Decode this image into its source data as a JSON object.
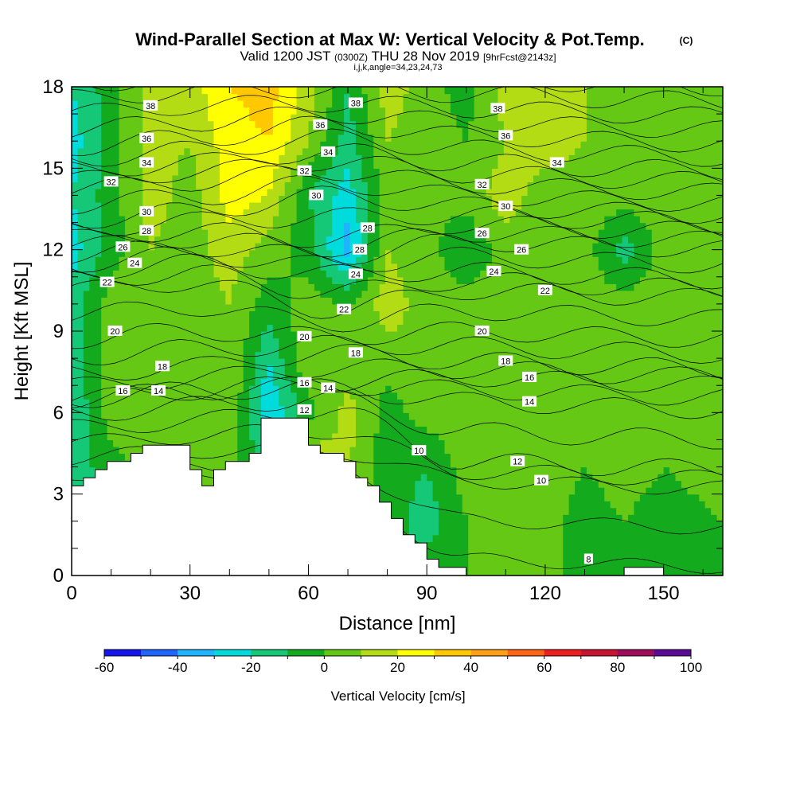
{
  "header": {
    "title": "Wind-Parallel Section at Max W: Vertical Velocity & Pot.Temp.",
    "copyright": "(C)",
    "valid_prefix": "Valid 1200 JST",
    "valid_utc": "(0300Z)",
    "valid_date": "THU 28 Nov 2019",
    "forecast": "[9hrFcst@2143z]",
    "indices": "i,j,k,angle=34,23,24,73"
  },
  "chart_data": {
    "type": "heatmap",
    "xlabel": "Distance [nm]",
    "ylabel": "Height [Kft MSL]",
    "xlim": [
      0,
      165
    ],
    "ylim": [
      0,
      18
    ],
    "x_ticks": [
      "0",
      "30",
      "60",
      "90",
      "120",
      "150"
    ],
    "y_ticks": [
      "0",
      "3",
      "6",
      "9",
      "12",
      "15",
      "18"
    ],
    "columns_x": [
      0,
      10,
      20,
      30,
      40,
      50,
      60,
      70,
      80,
      90,
      100,
      110,
      120,
      130,
      140,
      150,
      165
    ],
    "rows_y": [
      0,
      2,
      4,
      6,
      8,
      10,
      12,
      14,
      16,
      18
    ],
    "vertical_velocity_grid": [
      [
        -25,
        -15,
        -5,
        0,
        5,
        -5,
        15,
        0,
        -5,
        -5,
        0,
        0,
        5,
        -5,
        -5,
        -5,
        -5
      ],
      [
        -25,
        -15,
        -5,
        5,
        5,
        -5,
        15,
        10,
        -5,
        -15,
        0,
        0,
        5,
        -5,
        0,
        -5,
        0
      ],
      [
        -15,
        -5,
        5,
        10,
        5,
        -15,
        20,
        10,
        -5,
        -10,
        5,
        0,
        5,
        0,
        5,
        0,
        5
      ],
      [
        -20,
        5,
        10,
        5,
        10,
        -30,
        -5,
        15,
        -5,
        5,
        5,
        5,
        5,
        5,
        5,
        5,
        5
      ],
      [
        -15,
        5,
        10,
        5,
        10,
        -20,
        10,
        0,
        5,
        10,
        5,
        5,
        10,
        5,
        10,
        5,
        5
      ],
      [
        -15,
        5,
        10,
        5,
        10,
        -5,
        5,
        0,
        15,
        5,
        5,
        5,
        5,
        5,
        5,
        5,
        5
      ],
      [
        -25,
        -5,
        10,
        5,
        15,
        5,
        -5,
        -35,
        10,
        5,
        -10,
        5,
        5,
        5,
        -15,
        5,
        5
      ],
      [
        -20,
        -5,
        15,
        5,
        25,
        20,
        -10,
        -25,
        5,
        0,
        5,
        15,
        5,
        5,
        5,
        5,
        5
      ],
      [
        -25,
        -5,
        15,
        10,
        25,
        30,
        10,
        -15,
        10,
        5,
        0,
        10,
        15,
        10,
        5,
        5,
        5
      ],
      [
        -20,
        -5,
        15,
        15,
        30,
        35,
        15,
        -10,
        15,
        5,
        -5,
        15,
        15,
        10,
        5,
        5,
        5
      ]
    ],
    "terrain": {
      "x": [
        0,
        3,
        6,
        9,
        12,
        15,
        18,
        21,
        24,
        27,
        30,
        33,
        36,
        39,
        42,
        45,
        48,
        51,
        54,
        57,
        60,
        63,
        66,
        69,
        72,
        75,
        78,
        81,
        84,
        87,
        90,
        93,
        96,
        100,
        105,
        110,
        115,
        120,
        125,
        130,
        135,
        140,
        145,
        150,
        155,
        160,
        165
      ],
      "y": [
        3.3,
        3.6,
        3.9,
        4.2,
        4.2,
        4.5,
        4.8,
        4.8,
        4.8,
        4.8,
        3.9,
        3.3,
        3.9,
        4.2,
        4.2,
        4.5,
        5.8,
        5.8,
        5.8,
        5.8,
        4.8,
        4.5,
        4.5,
        4.2,
        3.6,
        3.3,
        2.7,
        2.1,
        1.5,
        1.2,
        0.6,
        0.3,
        0.3,
        0,
        0,
        0,
        0,
        0,
        0,
        0,
        0,
        0.3,
        0.3,
        0,
        0,
        0,
        0
      ]
    },
    "theta_contours": {
      "levels": [
        8,
        10,
        12,
        14,
        16,
        18,
        20,
        22,
        24,
        26,
        28,
        30,
        32,
        34,
        36,
        38
      ],
      "labels": [
        {
          "text": "38",
          "x": 20,
          "y": 17.3
        },
        {
          "text": "36",
          "x": 19,
          "y": 16.1
        },
        {
          "text": "34",
          "x": 19,
          "y": 15.2
        },
        {
          "text": "32",
          "x": 10,
          "y": 14.5
        },
        {
          "text": "30",
          "x": 19,
          "y": 13.4
        },
        {
          "text": "28",
          "x": 19,
          "y": 12.7
        },
        {
          "text": "26",
          "x": 13,
          "y": 12.1
        },
        {
          "text": "24",
          "x": 16,
          "y": 11.5
        },
        {
          "text": "22",
          "x": 9,
          "y": 10.8
        },
        {
          "text": "20",
          "x": 11,
          "y": 9.0
        },
        {
          "text": "18",
          "x": 23,
          "y": 7.7
        },
        {
          "text": "16",
          "x": 13,
          "y": 6.8
        },
        {
          "text": "14",
          "x": 22,
          "y": 6.8
        },
        {
          "text": "38",
          "x": 72,
          "y": 17.4
        },
        {
          "text": "36",
          "x": 63,
          "y": 16.6
        },
        {
          "text": "34",
          "x": 65,
          "y": 15.6
        },
        {
          "text": "32",
          "x": 59,
          "y": 14.9
        },
        {
          "text": "30",
          "x": 62,
          "y": 14.0
        },
        {
          "text": "28",
          "x": 75,
          "y": 12.8
        },
        {
          "text": "28",
          "x": 73,
          "y": 12.0
        },
        {
          "text": "24",
          "x": 72,
          "y": 11.1
        },
        {
          "text": "22",
          "x": 69,
          "y": 9.8
        },
        {
          "text": "20",
          "x": 59,
          "y": 8.8
        },
        {
          "text": "18",
          "x": 72,
          "y": 8.2
        },
        {
          "text": "16",
          "x": 59,
          "y": 7.1
        },
        {
          "text": "14",
          "x": 65,
          "y": 6.9
        },
        {
          "text": "12",
          "x": 59,
          "y": 6.1
        },
        {
          "text": "10",
          "x": 88,
          "y": 4.6
        },
        {
          "text": "38",
          "x": 108,
          "y": 17.2
        },
        {
          "text": "36",
          "x": 110,
          "y": 16.2
        },
        {
          "text": "34",
          "x": 123,
          "y": 15.2
        },
        {
          "text": "32",
          "x": 104,
          "y": 14.4
        },
        {
          "text": "30",
          "x": 110,
          "y": 13.6
        },
        {
          "text": "26",
          "x": 104,
          "y": 12.6
        },
        {
          "text": "26",
          "x": 114,
          "y": 12.0
        },
        {
          "text": "24",
          "x": 107,
          "y": 11.2
        },
        {
          "text": "22",
          "x": 120,
          "y": 10.5
        },
        {
          "text": "20",
          "x": 104,
          "y": 9.0
        },
        {
          "text": "18",
          "x": 110,
          "y": 7.9
        },
        {
          "text": "16",
          "x": 116,
          "y": 7.3
        },
        {
          "text": "14",
          "x": 116,
          "y": 6.4
        },
        {
          "text": "12",
          "x": 113,
          "y": 4.2
        },
        {
          "text": "10",
          "x": 119,
          "y": 3.5
        },
        {
          "text": "8",
          "x": 131,
          "y": 0.6
        }
      ]
    },
    "colorbar": {
      "label": "Vertical Velocity [cm/s]",
      "tick_labels": [
        "-60",
        "-40",
        "-20",
        "0",
        "20",
        "40",
        "60",
        "80",
        "100"
      ],
      "boundaries": [
        -60,
        -50,
        -40,
        -30,
        -20,
        -10,
        0,
        10,
        20,
        30,
        40,
        50,
        60,
        70,
        80,
        90,
        100
      ],
      "colors": [
        "#1414f0",
        "#1e64ff",
        "#1eb4ff",
        "#00dcdc",
        "#14c878",
        "#14aa1e",
        "#64c814",
        "#b4dc14",
        "#ffff00",
        "#ffc800",
        "#ffa014",
        "#ff6414",
        "#f01e1e",
        "#c81432",
        "#a00a5a",
        "#5a0a96"
      ]
    }
  }
}
